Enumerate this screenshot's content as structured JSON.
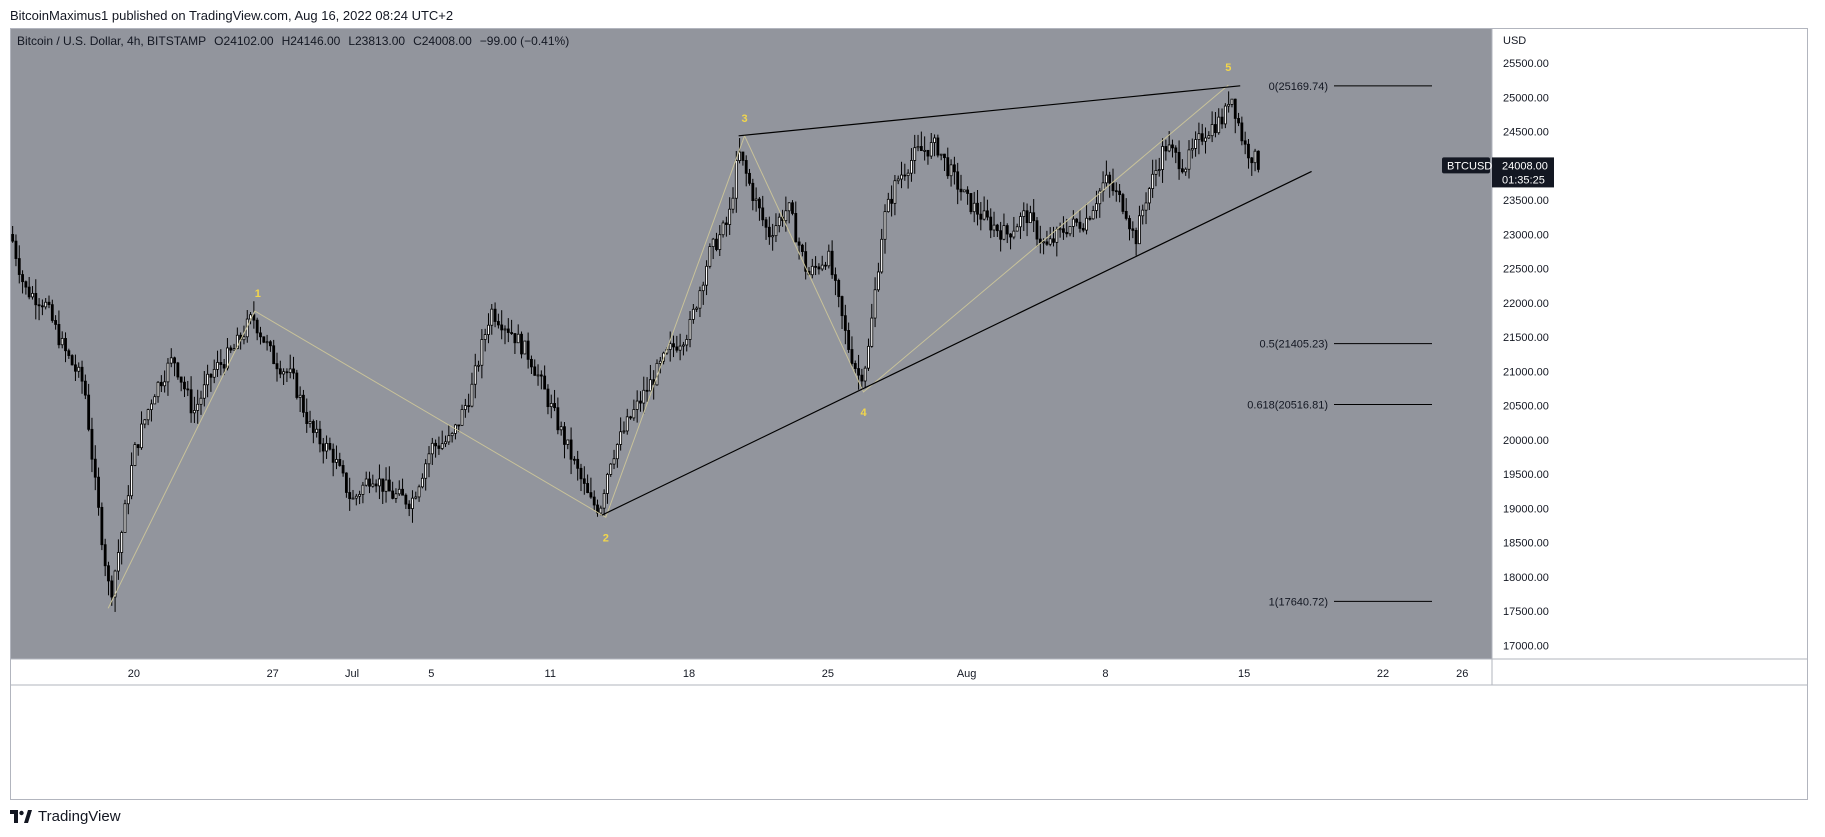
{
  "header": {
    "published": "BitcoinMaximus1 published on TradingView.com, Aug 16, 2022 08:24 UTC+2"
  },
  "footer": {
    "brand": "TradingView"
  },
  "colors": {
    "background": "#92959d",
    "candle": "#000000",
    "wave_line": "#c8c29a",
    "wave_label": "#f2d64b",
    "trendline": "#000000"
  },
  "chart_data": {
    "type": "candlestick",
    "title": "Bitcoin / U.S. Dollar, 4h, BITSTAMP",
    "ohlc_label": {
      "o_key": "O",
      "o": "24102.00",
      "h_key": "H",
      "h": "24146.00",
      "l_key": "L",
      "l": "23813.00",
      "c_key": "C",
      "c": "24008.00",
      "change": "−99.00 (−0.41%)"
    },
    "currency": "USD",
    "price_badge": {
      "symbol": "BTCUSD",
      "price": "24008.00",
      "countdown": "01:35:25"
    },
    "ylim": [
      16800,
      26000
    ],
    "y_ticks": [
      17000,
      17500,
      18000,
      18500,
      19000,
      19500,
      20000,
      20500,
      21000,
      21500,
      22000,
      22500,
      23000,
      23500,
      24000,
      24500,
      25000,
      25500
    ],
    "x_ticks": [
      {
        "label": "20",
        "day": 20
      },
      {
        "label": "27",
        "day": 27
      },
      {
        "label": "Jul",
        "day": 31
      },
      {
        "label": "5",
        "day": 35
      },
      {
        "label": "11",
        "day": 41
      },
      {
        "label": "18",
        "day": 48
      },
      {
        "label": "25",
        "day": 55
      },
      {
        "label": "Aug",
        "day": 62
      },
      {
        "label": "8",
        "day": 69
      },
      {
        "label": "15",
        "day": 76
      },
      {
        "label": "22",
        "day": 83
      },
      {
        "label": "26",
        "day": 87
      }
    ],
    "xlim_days": [
      13.8,
      88.5
    ],
    "price_path": [
      [
        13.8,
        23000
      ],
      [
        14.5,
        22200
      ],
      [
        15.5,
        22000
      ],
      [
        16.5,
        21300
      ],
      [
        17.5,
        20800
      ],
      [
        18.1,
        19200
      ],
      [
        18.8,
        17700
      ],
      [
        19.3,
        18500
      ],
      [
        20,
        19800
      ],
      [
        21,
        20700
      ],
      [
        22,
        21200
      ],
      [
        23,
        20400
      ],
      [
        24,
        21000
      ],
      [
        25,
        21300
      ],
      [
        26,
        21800
      ],
      [
        27,
        21200
      ],
      [
        28,
        20900
      ],
      [
        29,
        20100
      ],
      [
        30,
        19800
      ],
      [
        31,
        19100
      ],
      [
        32,
        19500
      ],
      [
        33,
        19200
      ],
      [
        34,
        19100
      ],
      [
        35,
        19900
      ],
      [
        36,
        20000
      ],
      [
        37,
        20700
      ],
      [
        38,
        21900
      ],
      [
        39,
        21600
      ],
      [
        40,
        21200
      ],
      [
        41,
        20500
      ],
      [
        42,
        19800
      ],
      [
        43,
        19100
      ],
      [
        43.5,
        19000
      ],
      [
        44,
        19700
      ],
      [
        45,
        20300
      ],
      [
        46,
        20800
      ],
      [
        47,
        21300
      ],
      [
        48,
        21600
      ],
      [
        49,
        22700
      ],
      [
        50,
        23200
      ],
      [
        50.5,
        24200
      ],
      [
        51.2,
        23600
      ],
      [
        52,
        23000
      ],
      [
        53,
        23400
      ],
      [
        54,
        22400
      ],
      [
        55,
        22700
      ],
      [
        56,
        21400
      ],
      [
        56.6,
        20900
      ],
      [
        57,
        21200
      ],
      [
        57.8,
        23200
      ],
      [
        58.5,
        23800
      ],
      [
        59.5,
        24200
      ],
      [
        60.5,
        24300
      ],
      [
        61,
        24000
      ],
      [
        62,
        23500
      ],
      [
        63,
        23200
      ],
      [
        64,
        23000
      ],
      [
        65,
        23300
      ],
      [
        66,
        22800
      ],
      [
        67,
        23100
      ],
      [
        68,
        23200
      ],
      [
        69,
        23800
      ],
      [
        70,
        23400
      ],
      [
        70.5,
        22900
      ],
      [
        71,
        23500
      ],
      [
        72,
        24300
      ],
      [
        73,
        24000
      ],
      [
        74,
        24500
      ],
      [
        75,
        24700
      ],
      [
        75.3,
        25100
      ],
      [
        76,
        24300
      ],
      [
        76.8,
        24000
      ]
    ],
    "fib_levels": [
      {
        "label": "0(25169.74)",
        "value": 25169.74
      },
      {
        "label": "0.5(21405.23)",
        "value": 21405.23
      },
      {
        "label": "0.618(20516.81)",
        "value": 20516.81
      },
      {
        "label": "1(17640.72)",
        "value": 17640.72
      }
    ],
    "waves": [
      {
        "label": "1",
        "day": 26.1,
        "value": 21880
      },
      {
        "label": "2",
        "day": 43.8,
        "value": 18870
      },
      {
        "label": "3",
        "day": 50.8,
        "value": 24440
      },
      {
        "label": "4",
        "day": 56.8,
        "value": 20700
      },
      {
        "label": "5",
        "day": 75.2,
        "value": 25180
      }
    ],
    "wave_start": {
      "day": 18.7,
      "value": 17540
    },
    "wedge_upper": [
      [
        50.5,
        24440
      ],
      [
        75.8,
        25170
      ]
    ],
    "wedge_lower": [
      [
        43.6,
        18900
      ],
      [
        79.4,
        23920
      ]
    ]
  }
}
